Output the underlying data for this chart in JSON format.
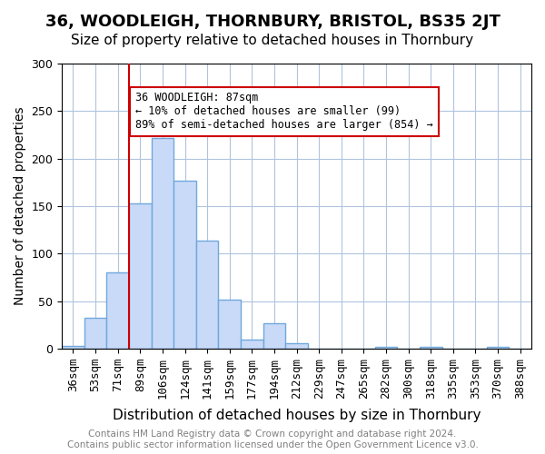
{
  "title": "36, WOODLEIGH, THORNBURY, BRISTOL, BS35 2JT",
  "subtitle": "Size of property relative to detached houses in Thornbury",
  "xlabel": "Distribution of detached houses by size in Thornbury",
  "ylabel": "Number of detached properties",
  "footer": "Contains HM Land Registry data © Crown copyright and database right 2024.\nContains public sector information licensed under the Open Government Licence v3.0.",
  "categories": [
    "36sqm",
    "53sqm",
    "71sqm",
    "89sqm",
    "106sqm",
    "124sqm",
    "141sqm",
    "159sqm",
    "177sqm",
    "194sqm",
    "212sqm",
    "229sqm",
    "247sqm",
    "265sqm",
    "282sqm",
    "300sqm",
    "318sqm",
    "335sqm",
    "353sqm",
    "370sqm",
    "388sqm"
  ],
  "values": [
    3,
    33,
    80,
    153,
    222,
    177,
    114,
    52,
    10,
    27,
    6,
    0,
    0,
    0,
    2,
    0,
    2,
    0,
    0,
    2,
    0
  ],
  "bar_color": "#c9daf8",
  "bar_edge_color": "#6fa8dc",
  "bar_linewidth": 1.0,
  "vline_x": 3,
  "vline_color": "#cc0000",
  "annotation_text": "36 WOODLEIGH: 87sqm\n← 10% of detached houses are smaller (99)\n89% of semi-detached houses are larger (854) →",
  "annotation_box_color": "white",
  "annotation_box_edge": "#cc0000",
  "ylim": [
    0,
    300
  ],
  "yticks": [
    0,
    50,
    100,
    150,
    200,
    250,
    300
  ],
  "bg_color": "white",
  "grid_color": "#b0c4de",
  "title_fontsize": 13,
  "subtitle_fontsize": 11,
  "xlabel_fontsize": 11,
  "ylabel_fontsize": 10,
  "tick_fontsize": 9,
  "footer_fontsize": 7.5
}
